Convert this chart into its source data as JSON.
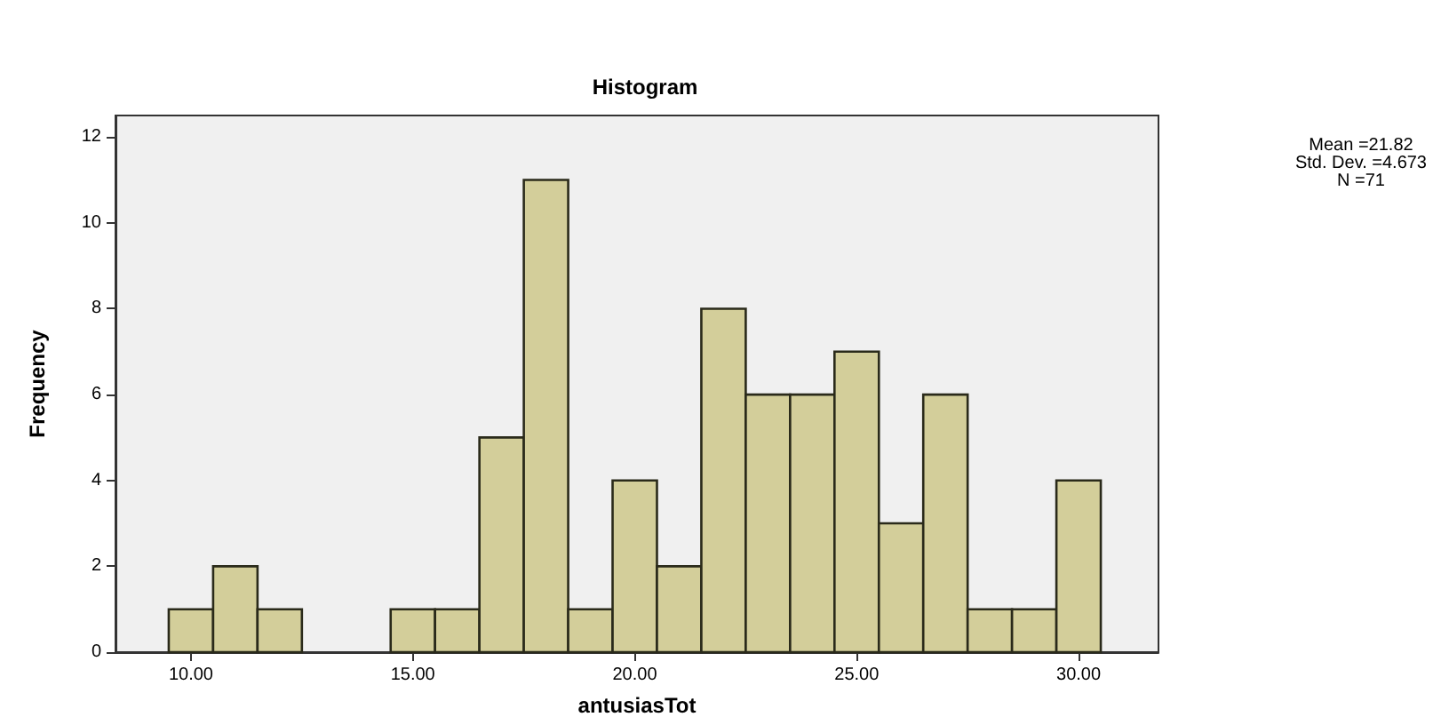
{
  "chart_data": {
    "type": "histogram",
    "title": "Histogram",
    "xlabel": "antusiasTot",
    "ylabel": "Frequency",
    "bins": [
      9.5,
      10.5,
      11.5,
      12.5,
      13.5,
      14.5,
      15.5,
      16.5,
      17.5,
      18.5,
      19.5,
      20.5,
      21.5,
      22.5,
      23.5,
      24.5,
      25.5,
      26.5,
      27.5,
      28.5,
      29.5,
      30.5
    ],
    "values": [
      1,
      2,
      1,
      0,
      0,
      1,
      1,
      5,
      11,
      1,
      4,
      2,
      8,
      6,
      6,
      7,
      3,
      6,
      1,
      1,
      4
    ],
    "color": "#d3ce9a",
    "xlim": [
      8.3,
      31.8
    ],
    "xticks": [
      {
        "value": 10,
        "label": "10.00"
      },
      {
        "value": 15,
        "label": "15.00"
      },
      {
        "value": 20,
        "label": "20.00"
      },
      {
        "value": 25,
        "label": "25.00"
      },
      {
        "value": 30,
        "label": "30.00"
      }
    ],
    "ylim": [
      0,
      12.5
    ],
    "yticks": [
      0,
      2,
      4,
      6,
      8,
      10,
      12
    ],
    "annotations": [
      "Mean =21.82",
      "Std. Dev. =4.673",
      "N =71"
    ],
    "grid": false
  }
}
